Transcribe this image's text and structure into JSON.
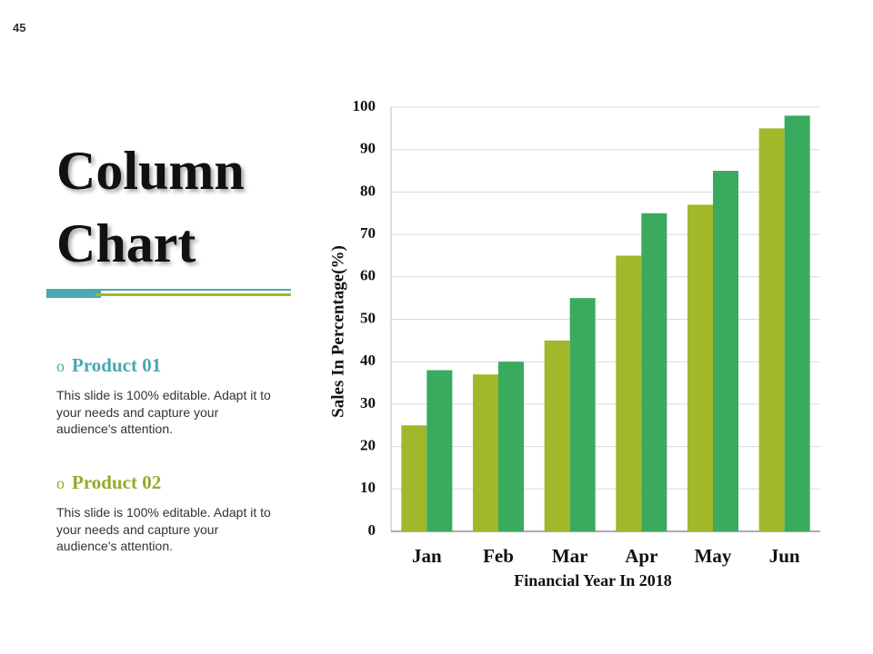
{
  "page_number": "45",
  "title": [
    "Column",
    "Chart"
  ],
  "items": [
    {
      "name": "Product 01",
      "color": "#4aa8b0",
      "description": "This slide is 100% editable. Adapt it to your needs and capture your audience's attention."
    },
    {
      "name": "Product 02",
      "color": "#93ab2c",
      "description": "This slide is 100% editable. Adapt it to your needs and capture your audience's attention."
    }
  ],
  "chart_data": {
    "type": "bar",
    "y_label": "Sales In Percentage(%)",
    "x_label": "Financial Year In 2018",
    "categories": [
      "Jan",
      "Feb",
      "Mar",
      "Apr",
      "May",
      "Jun"
    ],
    "series": [
      {
        "color": "#a2b72a",
        "values": [
          25,
          37,
          45,
          65,
          77,
          95
        ]
      },
      {
        "color": "#3aaa5f",
        "values": [
          38,
          40,
          55,
          75,
          85,
          98
        ]
      }
    ],
    "ylim": [
      0,
      100
    ],
    "yticks": [
      0,
      10,
      20,
      30,
      40,
      50,
      60,
      70,
      80,
      90,
      100
    ],
    "grid": true
  }
}
